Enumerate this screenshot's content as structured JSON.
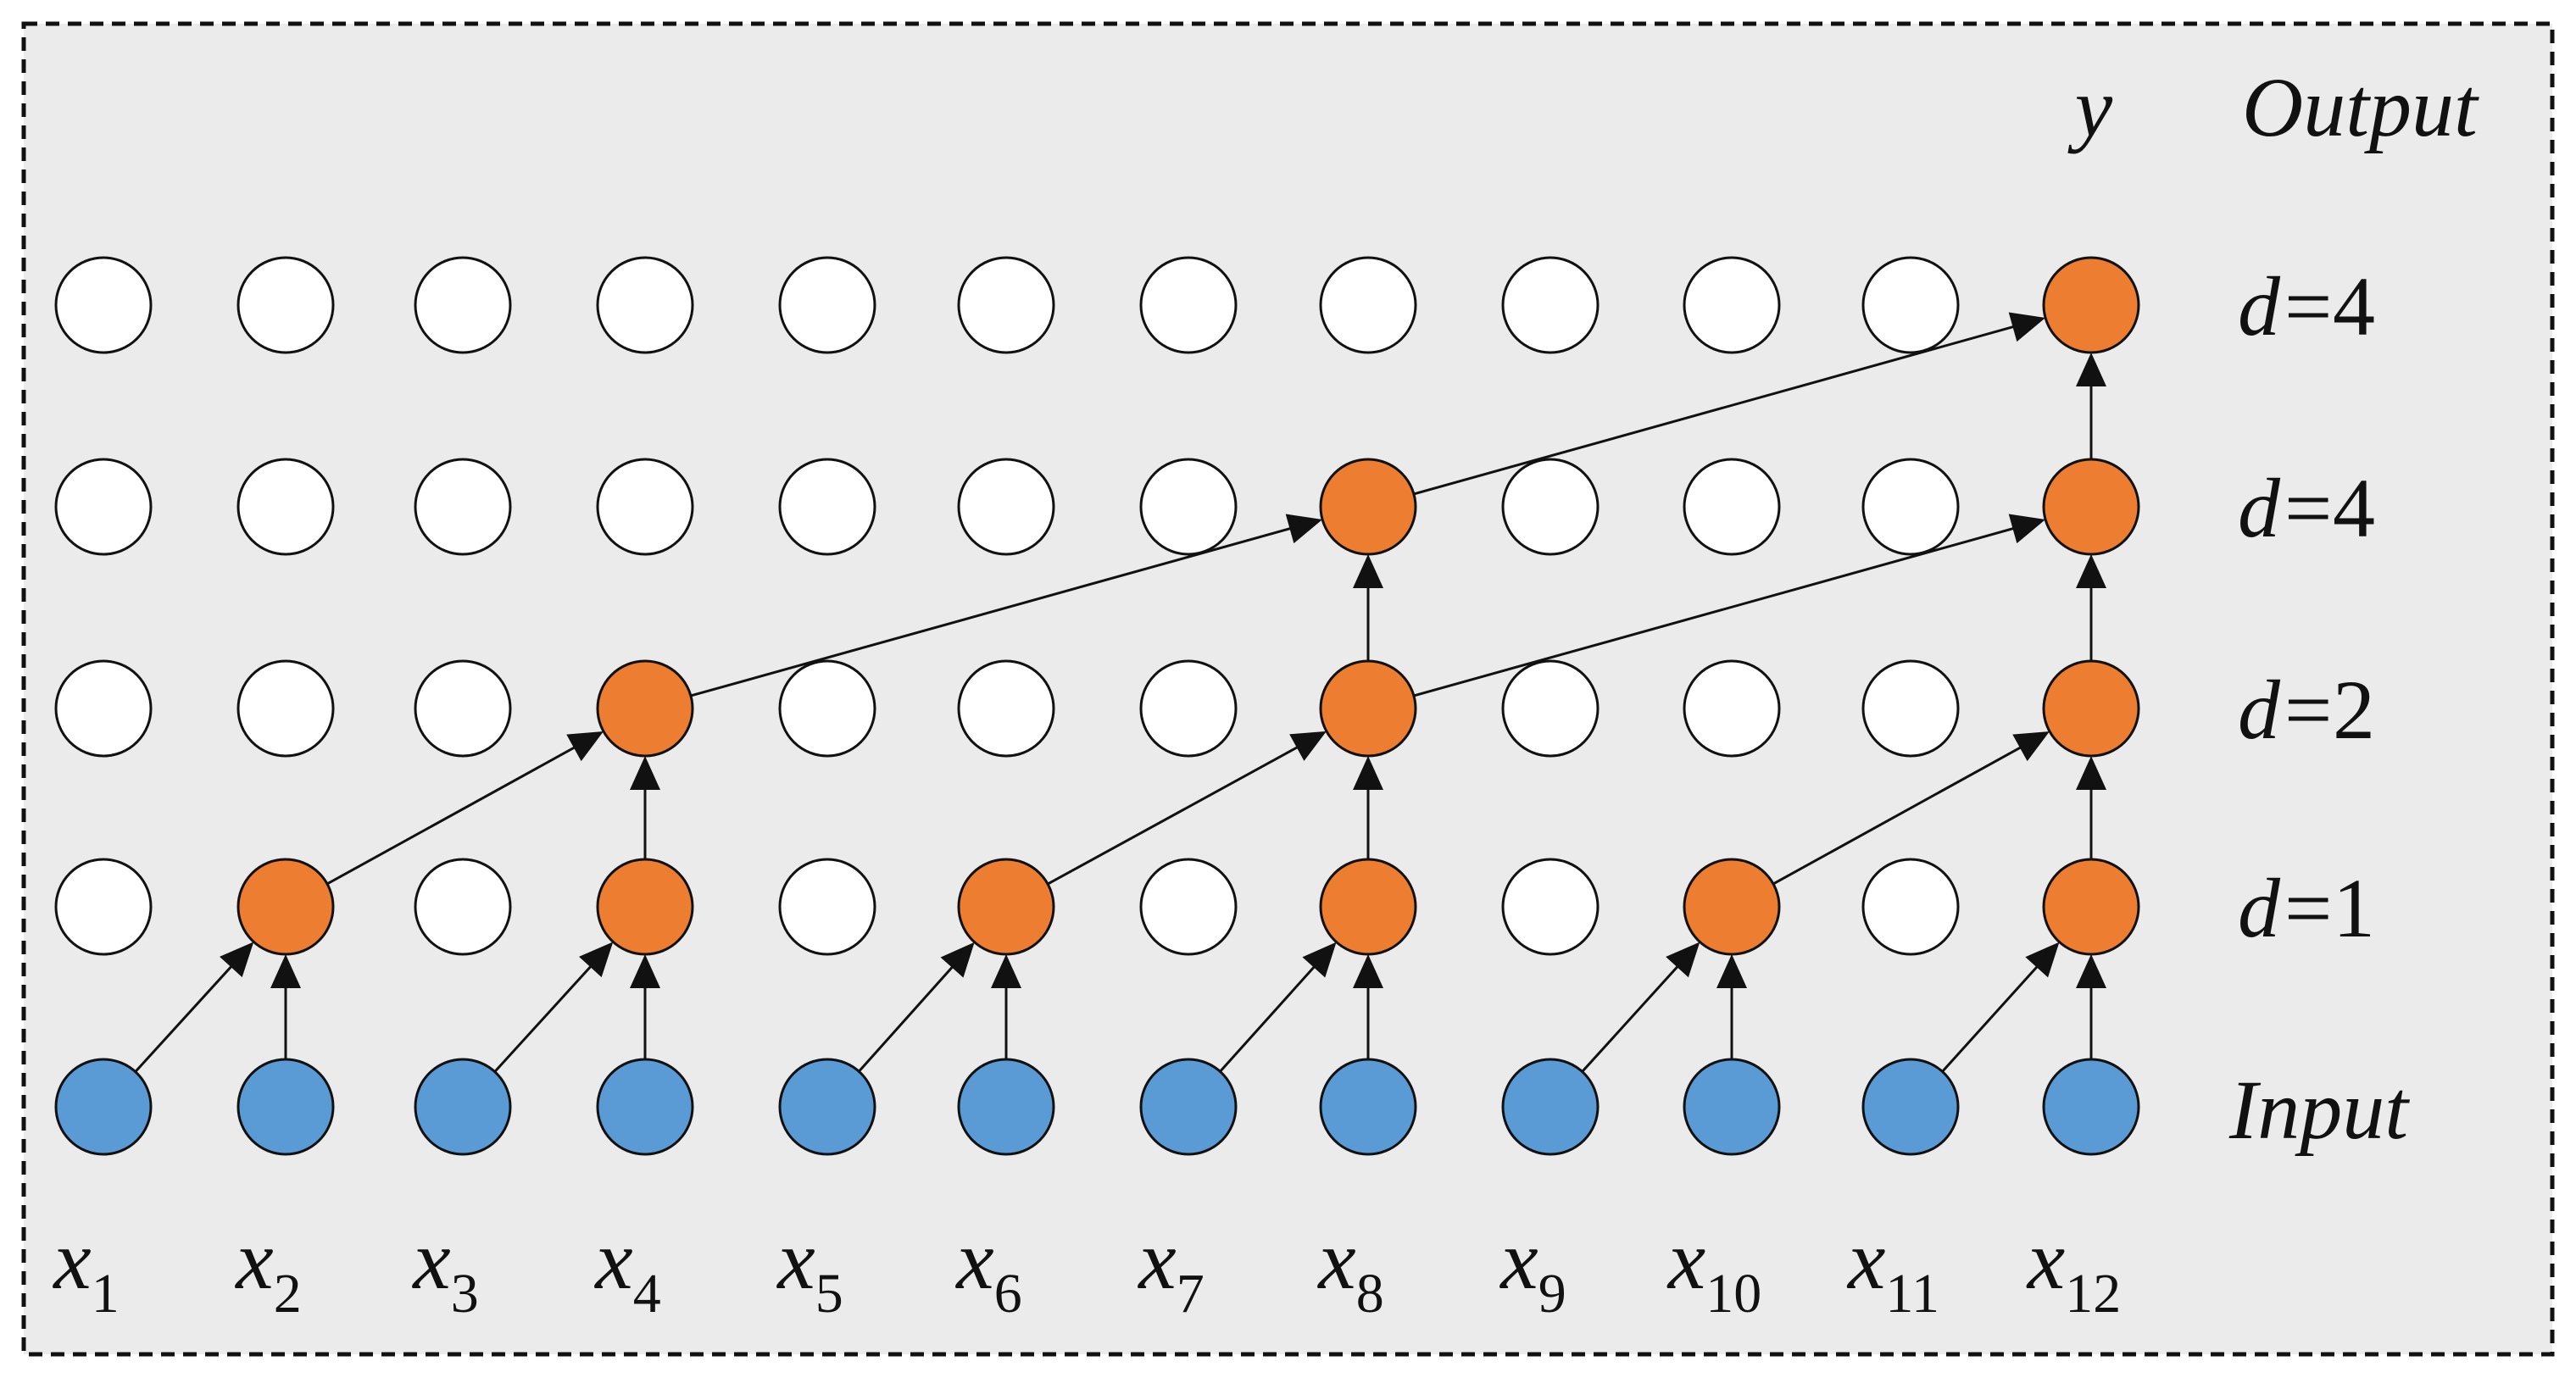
{
  "diagram": {
    "output_symbol": "y",
    "output_label": "Output",
    "input_label": "Input",
    "layers": [
      {
        "name": "d",
        "value": "4"
      },
      {
        "name": "d",
        "value": "4"
      },
      {
        "name": "d",
        "value": "2"
      },
      {
        "name": "d",
        "value": "1"
      }
    ],
    "inputs": [
      "1",
      "2",
      "3",
      "4",
      "5",
      "6",
      "7",
      "8",
      "9",
      "10",
      "11",
      "12"
    ],
    "input_symbol": "x",
    "active_nodes": {
      "d1": [
        2,
        4,
        6,
        8,
        10,
        12
      ],
      "d2": [
        4,
        8,
        12
      ],
      "d4a": [
        8,
        12
      ],
      "d4b": [
        12
      ]
    },
    "colors": {
      "input": "#5b9bd5",
      "active": "#ed7d31",
      "inactive": "#ffffff",
      "background": "#ebebeb",
      "stroke": "#111111"
    }
  }
}
